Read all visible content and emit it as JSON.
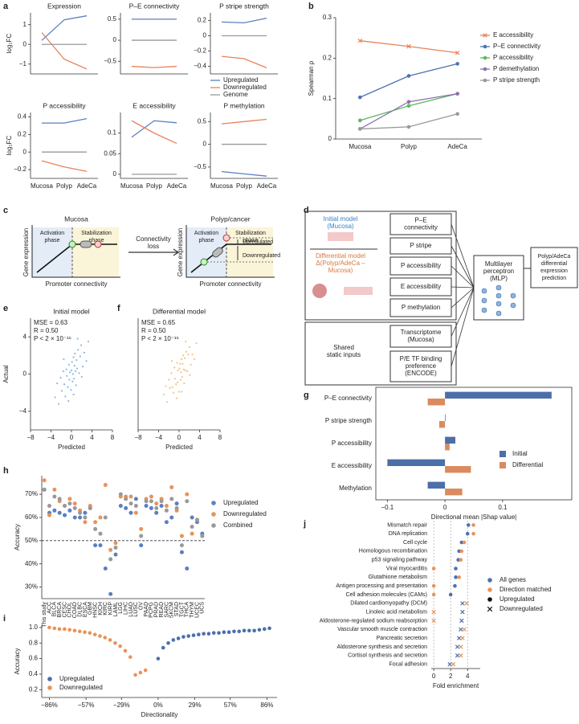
{
  "panel_labels": [
    "a",
    "b",
    "c",
    "d",
    "e",
    "f",
    "g",
    "h",
    "i",
    "j"
  ],
  "chart_data": [
    {
      "type": "line",
      "title": "Expression",
      "ylabel": "log₂FC",
      "series": [
        {
          "color": "#5b7fc0",
          "values": [
            0.2,
            1.25,
            1.45
          ]
        },
        {
          "color": "#e8825a",
          "values": [
            0.6,
            -0.75,
            -1.25
          ]
        },
        {
          "color": "#999999",
          "values": [
            0,
            0,
            0
          ]
        }
      ],
      "ylim": [
        -1.5,
        1.6
      ],
      "yticks": [
        {
          "value": -1,
          "label": "−1"
        },
        0,
        1
      ]
    },
    {
      "type": "line",
      "title": "P–E connectivity",
      "series": [
        {
          "color": "#5b7fc0",
          "values": [
            0.5,
            0.5,
            0.5
          ]
        },
        {
          "color": "#e8825a",
          "values": [
            -0.62,
            -0.65,
            -0.62
          ]
        },
        {
          "color": "#999999",
          "values": [
            0,
            0,
            0
          ]
        }
      ],
      "ylim": [
        -0.8,
        0.65
      ],
      "yticks": [
        {
          "value": -0.5,
          "label": "−0.5"
        },
        0,
        0.5
      ]
    },
    {
      "type": "line",
      "title": "P stripe strength",
      "legend": "lower right",
      "series": [
        {
          "name": "Upregulated",
          "color": "#5b7fc0",
          "values": [
            0.18,
            0.17,
            0.23
          ]
        },
        {
          "name": "Downregulated",
          "color": "#e8825a",
          "values": [
            -0.27,
            -0.3,
            -0.42
          ]
        },
        {
          "name": "Genome",
          "color": "#999999",
          "values": [
            0,
            0,
            0
          ]
        }
      ],
      "ylim": [
        -0.5,
        0.3
      ],
      "yticks": [
        {
          "value": -0.4,
          "label": "−0.4"
        },
        {
          "value": -0.2,
          "label": "−0.2"
        },
        0,
        0.2
      ]
    },
    {
      "type": "line",
      "title": "P accessibility",
      "ylabel": "log₂FC",
      "categories": [
        "Mucosa",
        "Polyp",
        "AdeCa"
      ],
      "series": [
        {
          "color": "#5b7fc0",
          "values": [
            0.33,
            0.33,
            0.38
          ]
        },
        {
          "color": "#e8825a",
          "values": [
            -0.1,
            -0.17,
            -0.22
          ]
        },
        {
          "color": "#999999",
          "values": [
            0,
            0,
            0
          ]
        }
      ],
      "ylim": [
        -0.3,
        0.45
      ],
      "yticks": [
        {
          "value": -0.2,
          "label": "−0.2"
        },
        0,
        0.2,
        0.4
      ]
    },
    {
      "type": "line",
      "title": "E accessibility",
      "categories": [
        "Mucosa",
        "Polyp",
        "AdeCa"
      ],
      "series": [
        {
          "color": "#5b7fc0",
          "values": [
            0.09,
            0.13,
            0.125
          ]
        },
        {
          "color": "#e8825a",
          "values": [
            0.13,
            0.1,
            0.075
          ]
        },
        {
          "color": "#999999",
          "values": [
            0,
            0,
            0
          ]
        }
      ],
      "ylim": [
        -0.01,
        0.15
      ],
      "yticks": [
        0,
        0.05,
        0.1
      ]
    },
    {
      "type": "line",
      "title": "P methylation",
      "categories": [
        "Mucosa",
        "Polyp",
        "AdeCa"
      ],
      "series": [
        {
          "color": "#5b7fc0",
          "values": [
            -0.6,
            -0.65,
            -0.7
          ]
        },
        {
          "color": "#e8825a",
          "values": [
            0.45,
            0.5,
            0.55
          ]
        },
        {
          "color": "#999999",
          "values": [
            0,
            0,
            0
          ]
        }
      ],
      "ylim": [
        -0.75,
        0.7
      ],
      "yticks": [
        {
          "value": -0.5,
          "label": "−0.5"
        },
        0,
        0.5
      ]
    },
    {
      "type": "line",
      "ylabel": "Spearman ρ",
      "categories": [
        "Mucosa",
        "Polyp",
        "AdeCa"
      ],
      "legend": "upper right",
      "series": [
        {
          "name": "E accessibility",
          "color": "#e8825a",
          "marker": "x",
          "values": [
            0.243,
            0.229,
            0.213
          ]
        },
        {
          "name": "P–E connectivity",
          "color": "#4c72b0",
          "marker": "o",
          "values": [
            0.103,
            0.156,
            0.186
          ]
        },
        {
          "name": "P accessibility",
          "color": "#5cb85c",
          "marker": "o",
          "values": [
            0.046,
            0.082,
            0.112
          ]
        },
        {
          "name": "P demethylation",
          "color": "#8e6fae",
          "marker": "o",
          "values": [
            0.025,
            0.092,
            0.112
          ]
        },
        {
          "name": "P stripe strength",
          "color": "#999999",
          "marker": "o",
          "values": [
            0.025,
            0.03,
            0.062
          ]
        }
      ],
      "ylim": [
        0,
        0.3
      ],
      "yticks": [
        0,
        0.1,
        0.2,
        0.3
      ]
    },
    {
      "type": "scatter",
      "title": "Initial model",
      "xlabel": "Predicted",
      "ylabel": "Actual",
      "color": "#6fa8dc",
      "annotations": [
        "MSE = 0.63",
        "R = 0.50",
        "P < 2 × 10⁻¹⁶"
      ],
      "x": [
        -3.2,
        -2.8,
        -2.5,
        -2.1,
        -1.9,
        -1.6,
        -1.4,
        -1.2,
        -1.0,
        -0.9,
        -0.7,
        -0.5,
        -0.4,
        -0.3,
        -0.1,
        0,
        0.1,
        0.2,
        0.3,
        0.4,
        0.5,
        0.6,
        0.7,
        0.8,
        0.9,
        1.0,
        1.1,
        1.3,
        1.5,
        1.7,
        1.9,
        2.2,
        2.5,
        2.9,
        3.3,
        -0.6,
        0.4,
        -1.5,
        1.2,
        2.0
      ],
      "values": [
        -2.5,
        -1.0,
        -3.2,
        -0.4,
        -1.8,
        0.3,
        -1.1,
        -2.4,
        0.5,
        -0.2,
        -1.4,
        1.0,
        -0.6,
        0.2,
        -1.7,
        0.4,
        1.3,
        -0.8,
        0.0,
        1.8,
        -0.5,
        0.9,
        2.2,
        0.3,
        -1.2,
        1.5,
        0.6,
        2.6,
        0.1,
        1.9,
        3.1,
        0.8,
        2.3,
        1.4,
        3.5,
        -2.9,
        -2.2,
        1.6,
        3.8,
        -0.3
      ],
      "xlim": [
        -8,
        8
      ],
      "xticks": [
        {
          "value": -8,
          "label": "−8"
        },
        {
          "value": -4,
          "label": "−4"
        },
        0,
        4,
        8
      ],
      "ylim": [
        -6,
        6
      ],
      "yticks": [
        {
          "value": -4,
          "label": "−4"
        },
        0,
        4
      ]
    },
    {
      "type": "scatter",
      "title": "Differential model",
      "xlabel": "Predicted",
      "color": "#f4b26b",
      "annotations": [
        "MSE = 0.65",
        "R = 0.50",
        "P < 2 × 10⁻¹⁶"
      ],
      "x": [
        -3.0,
        -2.6,
        -2.3,
        -2.0,
        -1.8,
        -1.5,
        -1.3,
        -1.1,
        -0.9,
        -0.8,
        -0.6,
        -0.4,
        -0.3,
        -0.2,
        0,
        0.1,
        0.2,
        0.3,
        0.4,
        0.5,
        0.6,
        0.7,
        0.8,
        0.9,
        1.0,
        1.1,
        1.2,
        1.4,
        1.6,
        1.8,
        2.0,
        2.3,
        2.6,
        3.0,
        3.4,
        -0.5,
        0.5,
        -1.4,
        1.3,
        2.1
      ],
      "values": [
        -2.2,
        -1.3,
        -3.0,
        -0.6,
        -1.5,
        0.1,
        -1.4,
        -2.0,
        0.7,
        -0.5,
        -1.1,
        1.2,
        -0.9,
        0.4,
        -1.9,
        0.6,
        1.1,
        -0.6,
        0.2,
        1.6,
        -0.3,
        1.1,
        2.0,
        0.5,
        -1.0,
        1.7,
        0.4,
        2.4,
        0.3,
        2.1,
        2.9,
        1.0,
        2.1,
        1.6,
        3.3,
        -2.6,
        -1.9,
        1.4,
        3.5,
        -0.1
      ],
      "xlim": [
        -8,
        8
      ],
      "xticks": [
        {
          "value": -8,
          "label": "−8"
        },
        {
          "value": -4,
          "label": "−4"
        },
        0,
        4,
        8
      ],
      "ylim": [
        -6,
        6
      ]
    },
    {
      "type": "hbar",
      "xlabel": "Directional mean |Shap value|",
      "legend": "right",
      "categories": [
        "P–E connectivity",
        "P stripe strength",
        "P accessibility",
        "E accessibility",
        "Methylation"
      ],
      "series": [
        {
          "name": "Initial",
          "color": "#4c6fa8",
          "values": [
            0.185,
            0.001,
            0.018,
            -0.1,
            -0.03
          ]
        },
        {
          "name": "Differential",
          "color": "#d98b5f",
          "values": [
            -0.03,
            -0.01,
            0.008,
            0.045,
            0.03
          ]
        }
      ],
      "xlim": [
        -0.12,
        0.22
      ],
      "xticks": [
        {
          "value": -0.1,
          "label": "−0.1"
        },
        0,
        0.1
      ]
    },
    {
      "type": "dot",
      "ylabel": "Accuracy",
      "legend": "right",
      "hline": 50,
      "categories": [
        "This study",
        "ACC",
        "BLCA",
        "BRCA",
        "CESC",
        "CHOL",
        "COAD",
        "DLBC",
        "ESCA",
        "GBM",
        "HNSC",
        "KICH",
        "KIRC",
        "KIRP",
        "LAML",
        "LGG",
        "LIHC",
        "LUAD",
        "LUSC",
        "OV",
        "PAAD",
        "PCPG",
        "PRAD",
        "READ",
        "SARC",
        "SKCM",
        "STAD",
        "TGCT",
        "THCA",
        "THYM",
        "UCEC",
        "UCS"
      ],
      "series": [
        {
          "name": "Upregulated",
          "color": "#5b7fc0",
          "values": [
            72,
            62,
            63,
            62,
            61,
            63,
            60,
            60,
            62,
            64,
            48,
            48,
            38,
            27,
            44,
            65,
            64,
            62,
            68,
            48,
            65,
            64,
            62,
            65,
            58,
            60,
            66,
            45,
            38,
            60,
            58,
            53
          ]
        },
        {
          "name": "Downregulated",
          "color": "#e8935a",
          "values": [
            76,
            61,
            72,
            67,
            65,
            68,
            66,
            63,
            58,
            65,
            58,
            60,
            74,
            46,
            49,
            69,
            69,
            69,
            62,
            55,
            68,
            69,
            66,
            68,
            65,
            73,
            63,
            52,
            70,
            53,
            59,
            52
          ]
        },
        {
          "name": "Combined",
          "color": "#999999",
          "values": [
            72,
            65,
            69,
            68,
            65,
            66,
            64,
            62,
            60,
            64,
            55,
            53,
            60,
            42,
            47,
            70,
            68,
            66,
            65,
            52,
            67,
            67,
            64,
            67,
            63,
            68,
            64,
            48,
            67,
            56,
            59,
            52
          ]
        }
      ],
      "ylim": [
        25,
        78
      ],
      "yticks": [
        {
          "value": 30,
          "label": "30%"
        },
        {
          "value": 40,
          "label": "40%"
        },
        {
          "value": 50,
          "label": "50%"
        },
        {
          "value": 60,
          "label": "60%"
        },
        {
          "value": 70,
          "label": "70%"
        }
      ]
    },
    {
      "type": "scatter",
      "xlabel": "Directionality",
      "ylabel": "Accuracy",
      "legend": "lower left",
      "series": [
        {
          "name": "Upregulated",
          "color": "#4c6fa8",
          "x": [
            0,
            4,
            8,
            12,
            16,
            20,
            24,
            28,
            32,
            36,
            40,
            44,
            48,
            52,
            56,
            60,
            64,
            68,
            72,
            76,
            80,
            84,
            88
          ],
          "values": [
            0.6,
            0.74,
            0.8,
            0.84,
            0.86,
            0.88,
            0.89,
            0.9,
            0.91,
            0.92,
            0.92,
            0.93,
            0.93,
            0.94,
            0.94,
            0.95,
            0.95,
            0.96,
            0.96,
            0.96,
            0.97,
            0.98,
            0.99
          ]
        },
        {
          "name": "Downregulated",
          "color": "#e8935a",
          "x": [
            -86,
            -82,
            -78,
            -74,
            -70,
            -66,
            -62,
            -58,
            -54,
            -50,
            -46,
            -42,
            -38,
            -34,
            -30,
            -26,
            -22,
            -18,
            -14,
            -10
          ],
          "values": [
            1.0,
            0.99,
            0.98,
            0.98,
            0.97,
            0.96,
            0.95,
            0.94,
            0.93,
            0.91,
            0.89,
            0.87,
            0.84,
            0.8,
            0.76,
            0.7,
            0.62,
            0.39,
            0.42,
            0.45
          ]
        }
      ],
      "xlim": [
        -92,
        94
      ],
      "xticks": [
        {
          "value": -86,
          "label": "−86%"
        },
        {
          "value": -57,
          "label": "−57%"
        },
        {
          "value": -29,
          "label": "−29%"
        },
        {
          "value": 0,
          "label": "0%"
        },
        {
          "value": 29,
          "label": "29%"
        },
        {
          "value": 57,
          "label": "57%"
        },
        {
          "value": 86,
          "label": "86%"
        }
      ],
      "ylim": [
        0.1,
        1.03
      ],
      "yticks": [
        0.2,
        0.4,
        0.6,
        0.8,
        {
          "value": 1,
          "label": "1.0"
        }
      ]
    },
    {
      "type": "dotplot",
      "xlabel": "Fold enrichment",
      "legend": "right",
      "grid": true,
      "categories": [
        "Mismatch repair",
        "DNA replication",
        "Cell cycle",
        "Homologous recombination",
        "p53 signaling pathway",
        "Viral myocarditis",
        "Glutathione metabolism",
        "Antigen processing and presentation",
        "Cell adhesion molecules (CAMs)",
        "Dilated cardiomyopathy (DCM)",
        "Linoleic acid metabolism",
        "Aldosterone-regulated sodium reabsorption",
        "Vascular smooth muscle contraction",
        "Pancreatic secretion",
        "Aldosterone synthesis and secretion",
        "Cortisol synthesis and secretion",
        "Focal adhesion"
      ],
      "series": [
        {
          "name": "All genes",
          "color": "#4c72b0",
          "values": [
            4.1,
            4.0,
            3.3,
            3.0,
            2.9,
            2.6,
            2.6,
            2.5,
            2.0,
            3.4,
            3.4,
            3.3,
            3.2,
            3.0,
            2.8,
            2.8,
            1.9
          ]
        },
        {
          "name": "Direction matched",
          "color": "#e8935a",
          "values": [
            4.7,
            4.7,
            3.6,
            3.3,
            3.2,
            0,
            3.0,
            0,
            0,
            3.9,
            0,
            0,
            3.6,
            3.4,
            3.2,
            3.2,
            2.3
          ]
        }
      ],
      "marker_legend": [
        "Upregulated",
        "Downregulated"
      ],
      "directions": [
        0,
        0,
        0,
        0,
        0,
        0,
        0,
        0,
        0,
        1,
        1,
        1,
        1,
        1,
        1,
        1,
        1
      ],
      "xlim": [
        -0.3,
        5.5
      ],
      "xticks": [
        0,
        2,
        4
      ]
    }
  ],
  "diagram_c": {
    "left_title": "Mucosa",
    "right_title": "Polyp/cancer",
    "activation": [
      "Activation",
      "phase"
    ],
    "stabilization": [
      "Stabilization",
      "phase"
    ],
    "y_label": "Gene expression",
    "x_label": "Promoter connectivity",
    "arrow_label": [
      "Connectivity",
      "loss"
    ],
    "up": "Upregulated",
    "down": "Downregulated"
  },
  "diagram_d": {
    "initial": [
      "Initial model",
      "(Mucosa)"
    ],
    "differential": [
      "Differential model",
      "Δ(Polyp/AdeCa –",
      "Mucosa)"
    ],
    "features": [
      [
        "P–E",
        "connectivity"
      ],
      [
        "P stripe"
      ],
      [
        "P accessibility"
      ],
      [
        "E accessibility"
      ],
      [
        "P methylation"
      ]
    ],
    "shared": [
      "Shared",
      "static inputs"
    ],
    "static_features": [
      [
        "Transcriptome",
        "(Mucosa)"
      ],
      [
        "P/E TF binding",
        "preference",
        "(ENCODE)"
      ]
    ],
    "model": [
      "Multilayer",
      "perceptron",
      "(MLP)"
    ],
    "output": [
      "Polyp/AdeCa",
      "differential",
      "expression",
      "prediction"
    ]
  }
}
